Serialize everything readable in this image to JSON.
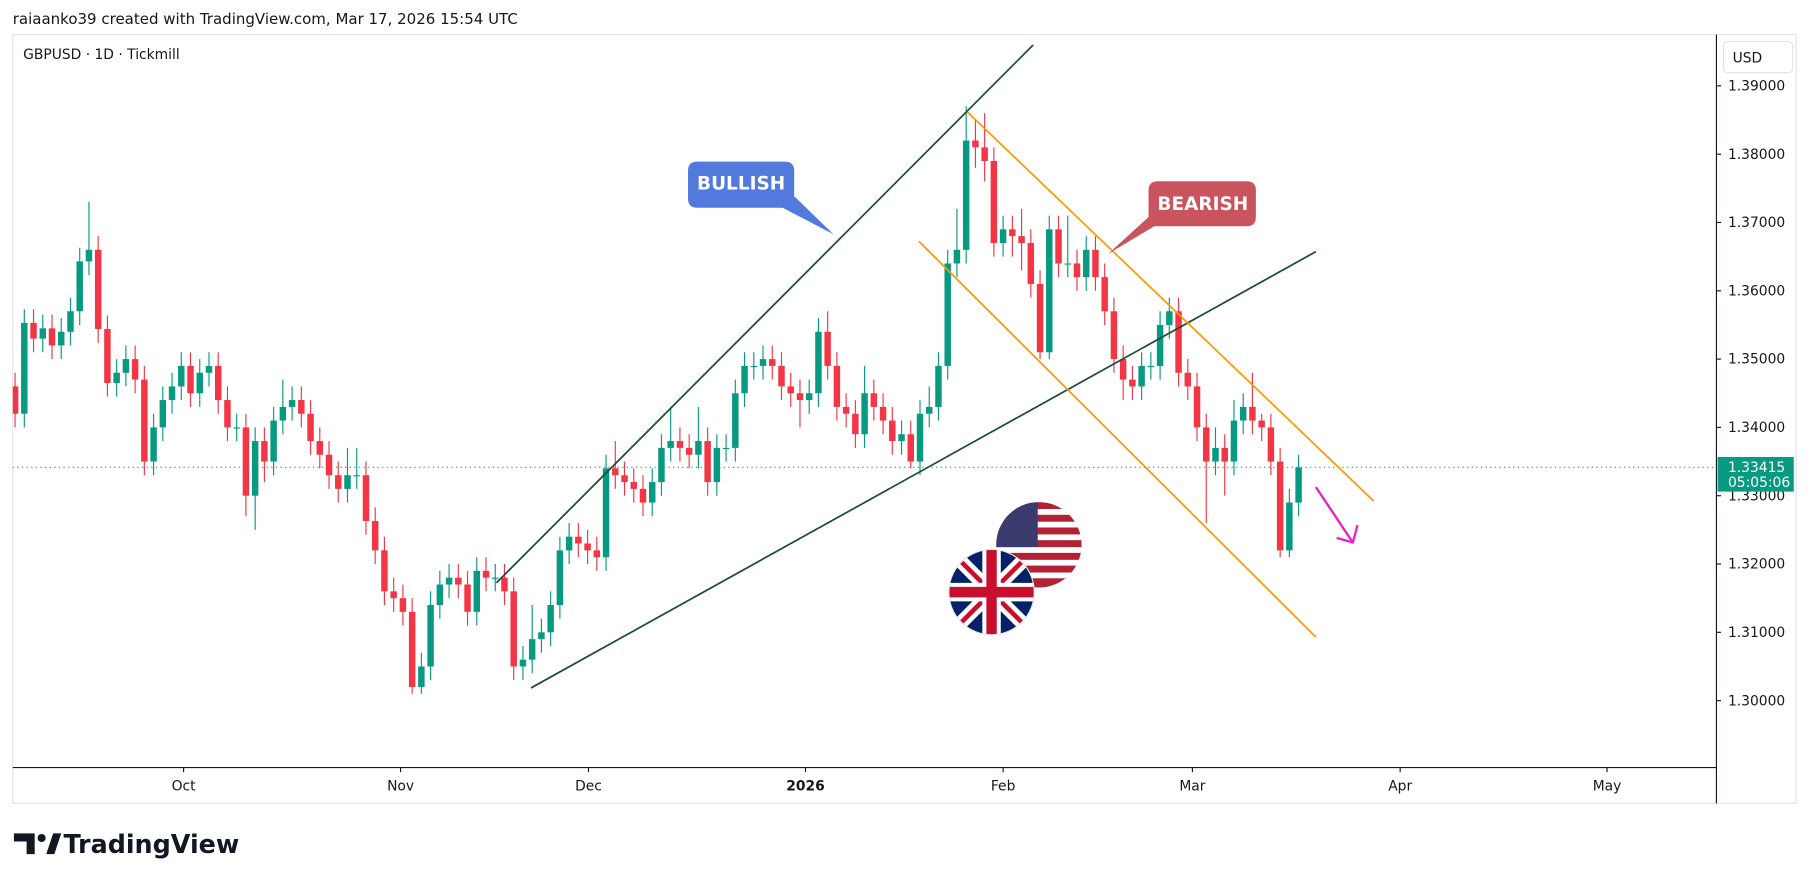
{
  "chart_data": {
    "type": "candlestick",
    "attribution": "raiaanko39 created with TradingView.com, Mar 17, 2026 15:54 UTC",
    "symbol": "GBPUSD · 1D · Tickmill",
    "currency": "USD",
    "brand": "TradingView",
    "annotations": [
      "BULLISH",
      "BEARISH"
    ],
    "up_color": "#089981",
    "down_color": "#f23645",
    "last_price": 1.33415,
    "countdown": "05:05:06",
    "open": [
      1.346,
      1.342,
      1.3553,
      1.353,
      1.3545,
      1.352,
      1.354,
      1.357,
      1.3643,
      1.366,
      1.3544,
      1.3465,
      1.348,
      1.35,
      1.347,
      1.335,
      1.34,
      1.344,
      1.346,
      1.349,
      1.345,
      1.348,
      1.349,
      1.344,
      1.34,
      1.34,
      1.33,
      1.338,
      1.335,
      1.341,
      1.343,
      1.344,
      1.342,
      1.338,
      1.336,
      1.333,
      1.331,
      1.333,
      1.333,
      1.3263,
      1.322,
      1.316,
      1.315,
      1.313,
      1.302,
      1.305,
      1.314,
      1.317,
      1.318,
      1.317,
      1.313,
      1.319,
      1.318,
      1.318,
      1.316,
      1.305,
      1.306,
      1.309,
      1.31,
      1.314,
      1.322,
      1.324,
      1.323,
      1.322,
      1.321,
      1.334,
      1.333,
      1.332,
      1.331,
      1.329,
      1.332,
      1.337,
      1.338,
      1.337,
      1.336,
      1.338,
      1.332,
      1.337,
      1.337,
      1.345,
      1.349,
      1.349,
      1.35,
      1.349,
      1.346,
      1.345,
      1.344,
      1.345,
      1.354,
      1.349,
      1.343,
      1.342,
      1.339,
      1.345,
      1.343,
      1.341,
      1.338,
      1.339,
      1.335,
      1.342,
      1.343,
      1.349,
      1.364,
      1.366,
      1.382,
      1.381,
      1.379,
      1.367,
      1.369,
      1.368,
      1.367,
      1.361,
      1.351,
      1.369,
      1.364,
      1.364,
      1.362,
      1.366,
      1.362,
      1.357,
      1.35,
      1.347,
      1.346,
      1.349,
      1.349,
      1.355,
      1.357,
      1.348,
      1.346,
      1.34,
      1.335,
      1.337,
      1.335,
      1.341,
      1.343,
      1.341,
      1.34,
      1.335,
      1.322,
      1.329
    ],
    "high": [
      1.348,
      1.3573,
      1.3573,
      1.3565,
      1.3565,
      1.356,
      1.359,
      1.3663,
      1.373,
      1.368,
      1.3564,
      1.35,
      1.352,
      1.352,
      1.349,
      1.342,
      1.346,
      1.348,
      1.351,
      1.351,
      1.35,
      1.351,
      1.351,
      1.346,
      1.342,
      1.342,
      1.34,
      1.34,
      1.343,
      1.347,
      1.346,
      1.346,
      1.344,
      1.34,
      1.338,
      1.335,
      1.337,
      1.337,
      1.335,
      1.3283,
      1.324,
      1.318,
      1.317,
      1.315,
      1.307,
      1.316,
      1.319,
      1.32,
      1.32,
      1.319,
      1.321,
      1.321,
      1.32,
      1.32,
      1.318,
      1.308,
      1.314,
      1.312,
      1.316,
      1.324,
      1.326,
      1.326,
      1.325,
      1.324,
      1.336,
      1.338,
      1.335,
      1.334,
      1.333,
      1.334,
      1.339,
      1.343,
      1.34,
      1.339,
      1.343,
      1.34,
      1.339,
      1.339,
      1.347,
      1.351,
      1.351,
      1.352,
      1.352,
      1.351,
      1.348,
      1.347,
      1.347,
      1.356,
      1.357,
      1.351,
      1.345,
      1.344,
      1.349,
      1.347,
      1.345,
      1.343,
      1.341,
      1.341,
      1.344,
      1.346,
      1.351,
      1.366,
      1.372,
      1.387,
      1.385,
      1.386,
      1.381,
      1.371,
      1.371,
      1.372,
      1.369,
      1.363,
      1.371,
      1.371,
      1.371,
      1.366,
      1.368,
      1.368,
      1.364,
      1.359,
      1.352,
      1.349,
      1.351,
      1.351,
      1.357,
      1.359,
      1.359,
      1.35,
      1.348,
      1.342,
      1.34,
      1.339,
      1.344,
      1.345,
      1.348,
      1.342,
      1.342,
      1.337,
      1.331,
      1.336
    ],
    "low": [
      1.34,
      1.34,
      1.351,
      1.351,
      1.35,
      1.35,
      1.352,
      1.355,
      1.3623,
      1.3524,
      1.3445,
      1.3445,
      1.346,
      1.345,
      1.333,
      1.333,
      1.338,
      1.342,
      1.344,
      1.343,
      1.343,
      1.346,
      1.342,
      1.338,
      1.338,
      1.327,
      1.325,
      1.332,
      1.333,
      1.339,
      1.341,
      1.34,
      1.336,
      1.334,
      1.331,
      1.329,
      1.329,
      1.331,
      1.3243,
      1.32,
      1.314,
      1.313,
      1.311,
      1.301,
      1.301,
      1.303,
      1.312,
      1.315,
      1.315,
      1.311,
      1.311,
      1.316,
      1.316,
      1.314,
      1.303,
      1.303,
      1.304,
      1.307,
      1.308,
      1.312,
      1.32,
      1.321,
      1.32,
      1.319,
      1.319,
      1.331,
      1.33,
      1.329,
      1.327,
      1.327,
      1.33,
      1.335,
      1.335,
      1.334,
      1.334,
      1.33,
      1.33,
      1.335,
      1.335,
      1.343,
      1.347,
      1.347,
      1.347,
      1.344,
      1.343,
      1.34,
      1.342,
      1.343,
      1.347,
      1.341,
      1.34,
      1.337,
      1.337,
      1.341,
      1.339,
      1.336,
      1.336,
      1.334,
      1.333,
      1.34,
      1.341,
      1.347,
      1.362,
      1.364,
      1.378,
      1.376,
      1.365,
      1.365,
      1.365,
      1.363,
      1.359,
      1.35,
      1.35,
      1.362,
      1.362,
      1.36,
      1.36,
      1.36,
      1.355,
      1.348,
      1.344,
      1.344,
      1.344,
      1.347,
      1.347,
      1.353,
      1.346,
      1.344,
      1.338,
      1.326,
      1.333,
      1.33,
      1.333,
      1.339,
      1.339,
      1.338,
      1.333,
      1.321,
      1.321,
      1.327
    ],
    "close": [
      1.342,
      1.3553,
      1.353,
      1.3545,
      1.352,
      1.354,
      1.357,
      1.3643,
      1.366,
      1.3544,
      1.3465,
      1.348,
      1.35,
      1.347,
      1.335,
      1.34,
      1.344,
      1.346,
      1.349,
      1.345,
      1.348,
      1.349,
      1.344,
      1.34,
      1.34,
      1.33,
      1.338,
      1.335,
      1.341,
      1.343,
      1.344,
      1.342,
      1.338,
      1.336,
      1.333,
      1.331,
      1.333,
      1.333,
      1.3263,
      1.322,
      1.316,
      1.315,
      1.313,
      1.302,
      1.305,
      1.314,
      1.317,
      1.318,
      1.317,
      1.313,
      1.319,
      1.318,
      1.318,
      1.316,
      1.305,
      1.306,
      1.309,
      1.31,
      1.314,
      1.322,
      1.324,
      1.323,
      1.322,
      1.321,
      1.334,
      1.333,
      1.332,
      1.331,
      1.329,
      1.332,
      1.337,
      1.338,
      1.337,
      1.336,
      1.338,
      1.332,
      1.337,
      1.337,
      1.345,
      1.349,
      1.349,
      1.35,
      1.349,
      1.346,
      1.345,
      1.344,
      1.345,
      1.354,
      1.349,
      1.343,
      1.342,
      1.339,
      1.345,
      1.343,
      1.341,
      1.338,
      1.339,
      1.335,
      1.342,
      1.343,
      1.349,
      1.364,
      1.366,
      1.382,
      1.381,
      1.379,
      1.367,
      1.369,
      1.368,
      1.367,
      1.361,
      1.351,
      1.369,
      1.364,
      1.364,
      1.362,
      1.366,
      1.362,
      1.357,
      1.35,
      1.347,
      1.346,
      1.349,
      1.349,
      1.355,
      1.357,
      1.348,
      1.346,
      1.34,
      1.335,
      1.337,
      1.335,
      1.341,
      1.343,
      1.341,
      1.34,
      1.335,
      1.322,
      1.329,
      1.33415
    ],
    "xlim": [
      -0.25,
      184.25
    ],
    "xticks": [
      {
        "value": 18.25,
        "label": "Oct"
      },
      {
        "value": 41.75,
        "label": "Nov"
      },
      {
        "value": 62.1,
        "label": "Dec"
      },
      {
        "value": 85.6,
        "label": "2026"
      },
      {
        "value": 107,
        "label": "Feb"
      },
      {
        "value": 127.5,
        "label": "Mar"
      },
      {
        "value": 150,
        "label": "Apr"
      },
      {
        "value": 172.4,
        "label": "May"
      }
    ],
    "ylim": [
      1.2902,
      1.3975
    ],
    "yticks": [
      {
        "value": 1.3,
        "label": "1.30000"
      },
      {
        "value": 1.31,
        "label": "1.31000"
      },
      {
        "value": 1.32,
        "label": "1.32000"
      },
      {
        "value": 1.33,
        "label": "1.33000"
      },
      {
        "value": 1.34,
        "label": "1.34000"
      },
      {
        "value": 1.35,
        "label": "1.35000"
      },
      {
        "value": 1.36,
        "label": "1.36000"
      },
      {
        "value": 1.37,
        "label": "1.37000"
      },
      {
        "value": 1.38,
        "label": "1.38000"
      },
      {
        "value": 1.39,
        "label": "1.39000"
      }
    ]
  }
}
